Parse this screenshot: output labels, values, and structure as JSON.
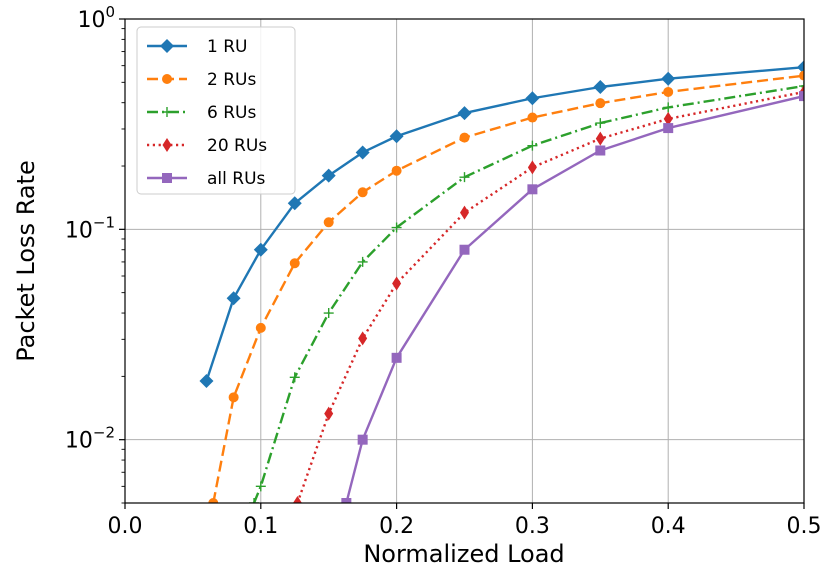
{
  "chart_data": {
    "type": "line",
    "xlabel": "Normalized Load",
    "ylabel": "Packet Loss Rate",
    "xlim": [
      0.0,
      0.5
    ],
    "ylim": [
      0.005,
      1.0
    ],
    "y_scale": "log",
    "grid": true,
    "legend_position": "top-left",
    "x_ticks": [
      "0.0",
      "0.1",
      "0.2",
      "0.3",
      "0.4",
      "0.5"
    ],
    "x_tick_values": [
      0.0,
      0.1,
      0.2,
      0.3,
      0.4,
      0.5
    ],
    "y_ticks": [
      {
        "value": 1.0,
        "base": "10",
        "exp": "0"
      },
      {
        "value": 0.1,
        "base": "10",
        "exp": "−1"
      },
      {
        "value": 0.01,
        "base": "10",
        "exp": "−2"
      }
    ],
    "series": [
      {
        "name": "1 RU",
        "color": "#1f77b4",
        "linestyle": "solid",
        "marker": "diamond",
        "x": [
          0.06,
          0.08,
          0.1,
          0.125,
          0.15,
          0.175,
          0.2,
          0.25,
          0.3,
          0.35,
          0.4,
          0.5
        ],
        "y": [
          0.019,
          0.047,
          0.08,
          0.133,
          0.18,
          0.232,
          0.277,
          0.357,
          0.42,
          0.475,
          0.52,
          0.59
        ]
      },
      {
        "name": "2 RUs",
        "color": "#ff7f0e",
        "linestyle": "dashed",
        "marker": "circle",
        "x": [
          0.065,
          0.08,
          0.1,
          0.125,
          0.15,
          0.175,
          0.2,
          0.25,
          0.3,
          0.35,
          0.4,
          0.5
        ],
        "y": [
          0.005,
          0.0159,
          0.034,
          0.069,
          0.108,
          0.15,
          0.19,
          0.273,
          0.34,
          0.398,
          0.45,
          0.538
        ]
      },
      {
        "name": "6 RUs",
        "color": "#2ca02c",
        "linestyle": "dashdot",
        "marker": "plus",
        "x": [
          0.095,
          0.1,
          0.125,
          0.15,
          0.175,
          0.2,
          0.25,
          0.3,
          0.35,
          0.4,
          0.5
        ],
        "y": [
          0.005,
          0.006,
          0.0198,
          0.04,
          0.07,
          0.102,
          0.177,
          0.25,
          0.32,
          0.38,
          0.48
        ]
      },
      {
        "name": "20 RUs",
        "color": "#d62728",
        "linestyle": "dotted",
        "marker": "thin-diamond",
        "x": [
          0.127,
          0.15,
          0.175,
          0.2,
          0.25,
          0.3,
          0.35,
          0.4,
          0.5
        ],
        "y": [
          0.005,
          0.0133,
          0.0303,
          0.0553,
          0.12,
          0.197,
          0.27,
          0.335,
          0.45
        ]
      },
      {
        "name": "all RUs",
        "color": "#9467bd",
        "linestyle": "solid",
        "marker": "square",
        "x": [
          0.163,
          0.175,
          0.2,
          0.25,
          0.3,
          0.35,
          0.4,
          0.5
        ],
        "y": [
          0.005,
          0.01,
          0.0245,
          0.08,
          0.155,
          0.237,
          0.303,
          0.43
        ]
      }
    ]
  }
}
